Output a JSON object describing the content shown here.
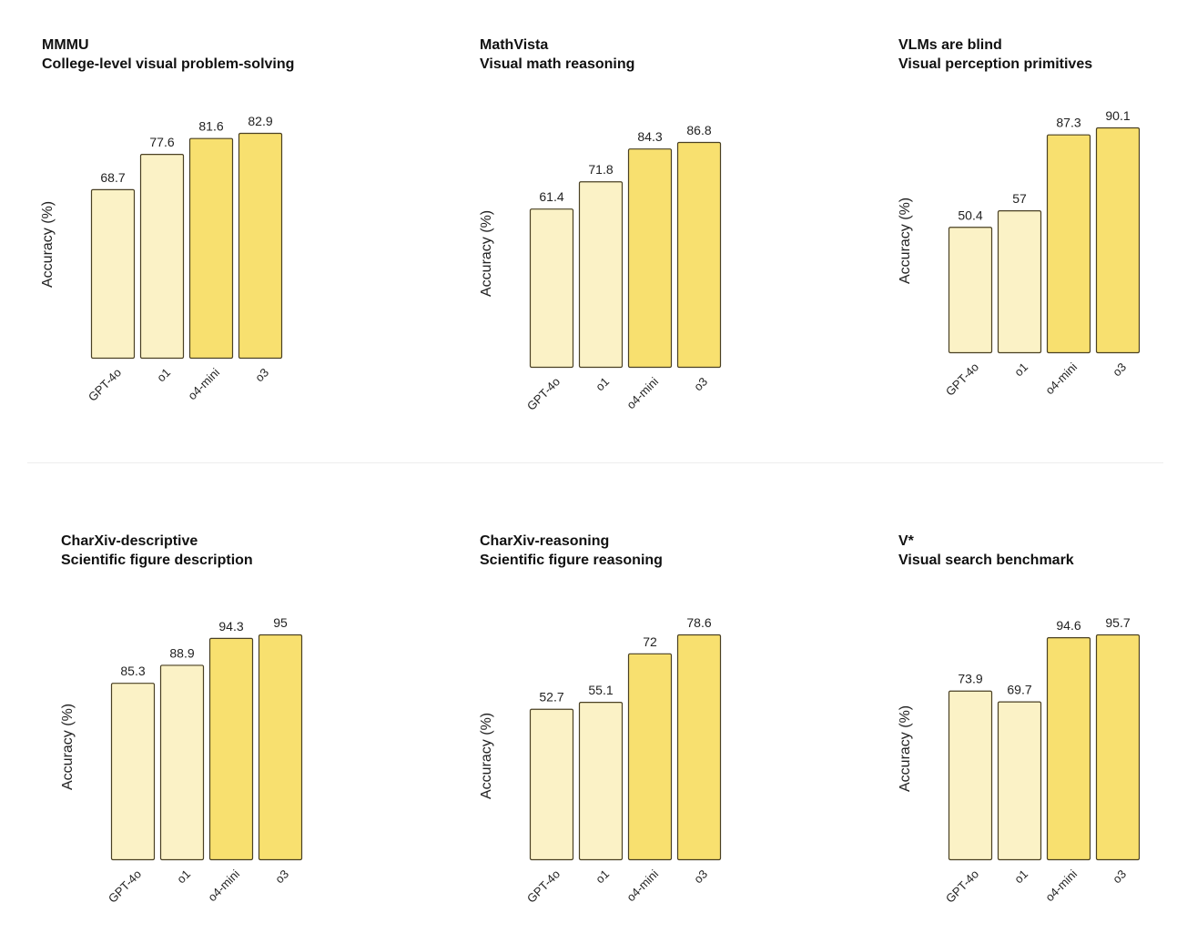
{
  "colors": {
    "light_bar": "#fbf2c6",
    "bright_bar": "#f8e06f",
    "bar_stroke": "#4a4023",
    "text": "#222222"
  },
  "chart_data": [
    {
      "type": "bar",
      "title": "MMMU",
      "subtitle": "College-level visual problem-solving",
      "ylabel": "Accuracy (%)",
      "categories": [
        "GPT-4o",
        "o1",
        "o4-mini",
        "o3"
      ],
      "values": [
        68.7,
        77.6,
        81.6,
        82.9
      ],
      "value_labels": [
        "68.7",
        "77.6",
        "81.6",
        "82.9"
      ],
      "highlight": [
        false,
        false,
        true,
        true
      ],
      "grid": false,
      "ylim": [
        0,
        82.9
      ]
    },
    {
      "type": "bar",
      "title": "MathVista",
      "subtitle": "Visual math reasoning",
      "ylabel": "Accuracy (%)",
      "categories": [
        "GPT-4o",
        "o1",
        "o4-mini",
        "o3"
      ],
      "values": [
        61.4,
        71.8,
        84.3,
        86.8
      ],
      "value_labels": [
        "61.4",
        "71.8",
        "84.3",
        "86.8"
      ],
      "highlight": [
        false,
        false,
        true,
        true
      ],
      "grid": false,
      "ylim": [
        0,
        86.8
      ]
    },
    {
      "type": "bar",
      "title": "VLMs are blind",
      "subtitle": "Visual perception primitives",
      "ylabel": "Accuracy (%)",
      "categories": [
        "GPT-4o",
        "o1",
        "o4-mini",
        "o3"
      ],
      "values": [
        50.4,
        57,
        87.3,
        90.1
      ],
      "value_labels": [
        "50.4",
        "57",
        "87.3",
        "90.1"
      ],
      "highlight": [
        false,
        false,
        true,
        true
      ],
      "grid": false,
      "ylim": [
        0,
        90.1
      ]
    },
    {
      "type": "bar",
      "title": "CharXiv-descriptive",
      "subtitle": "Scientific figure description",
      "ylabel": "Accuracy (%)",
      "categories": [
        "GPT-4o",
        "o1",
        "o4-mini",
        "o3"
      ],
      "values": [
        85.3,
        88.9,
        94.3,
        95
      ],
      "value_labels": [
        "85.3",
        "88.9",
        "94.3",
        "95"
      ],
      "highlight": [
        false,
        false,
        true,
        true
      ],
      "grid": false,
      "ylim": [
        0,
        95
      ]
    },
    {
      "type": "bar",
      "title": "CharXiv-reasoning",
      "subtitle": "Scientific figure reasoning",
      "ylabel": "Accuracy (%)",
      "categories": [
        "GPT-4o",
        "o1",
        "o4-mini",
        "o3"
      ],
      "values": [
        52.7,
        55.1,
        72,
        78.6
      ],
      "value_labels": [
        "52.7",
        "55.1",
        "72",
        "78.6"
      ],
      "highlight": [
        false,
        false,
        true,
        true
      ],
      "grid": false,
      "ylim": [
        0,
        78.6
      ]
    },
    {
      "type": "bar",
      "title": "V*",
      "subtitle": "Visual search benchmark",
      "ylabel": "Accuracy (%)",
      "categories": [
        "GPT-4o",
        "o1",
        "o4-mini",
        "o3"
      ],
      "values": [
        73.9,
        69.7,
        94.6,
        95.7
      ],
      "value_labels": [
        "73.9",
        "69.7",
        "94.6",
        "95.7"
      ],
      "highlight": [
        false,
        false,
        true,
        true
      ],
      "grid": false,
      "ylim": [
        0,
        95.7
      ]
    }
  ]
}
